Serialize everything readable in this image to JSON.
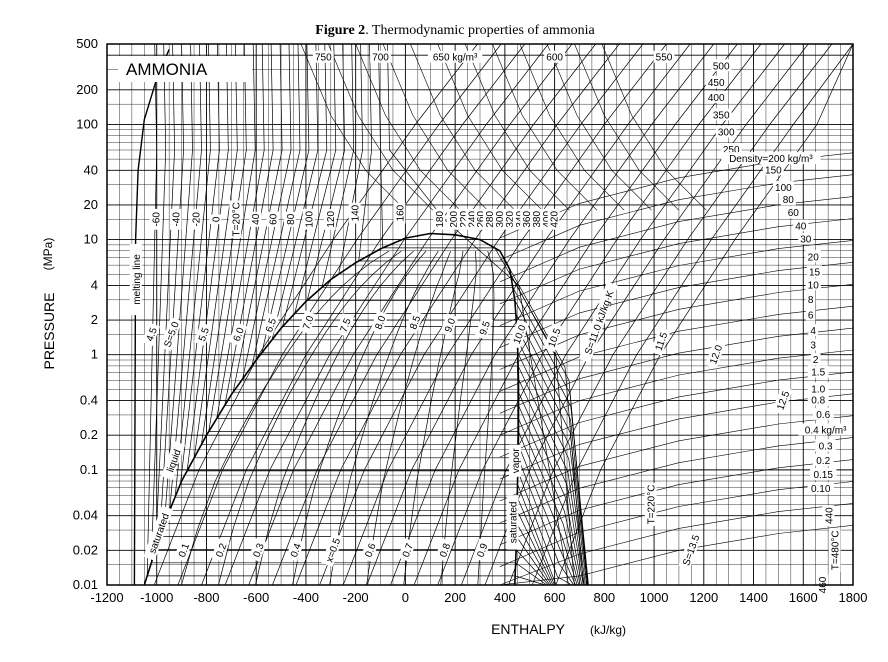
{
  "figure": {
    "title_bold": "Figure 2",
    "title_rest": ". Thermodynamic properties of ammonia",
    "substance_label": "AMMONIA"
  },
  "chart_data": {
    "type": "line",
    "title": "Figure 2. Thermodynamic properties of ammonia",
    "xlabel": "ENTHALPY",
    "xunit": "(kJ/kg)",
    "ylabel": "PRESSURE",
    "yunit": "(MPa)",
    "xlim": [
      -1200,
      1800
    ],
    "ylim": [
      0.01,
      500
    ],
    "yscale": "log",
    "grid": true,
    "x_ticks": [
      "-1200",
      "-1000",
      "-800",
      "-600",
      "-400",
      "-200",
      "0",
      "200",
      "400",
      "600",
      "800",
      "1000",
      "1200",
      "1400",
      "1600",
      "1800"
    ],
    "y_ticks": [
      {
        "value": 0.01,
        "label": "0.01"
      },
      {
        "value": 0.02,
        "label": "0.02"
      },
      {
        "value": 0.04,
        "label": "0.04"
      },
      {
        "value": 0.1,
        "label": "0.1"
      },
      {
        "value": 0.2,
        "label": "0.2"
      },
      {
        "value": 0.4,
        "label": "0.4"
      },
      {
        "value": 1,
        "label": "1"
      },
      {
        "value": 2,
        "label": "2"
      },
      {
        "value": 4,
        "label": "4"
      },
      {
        "value": 10,
        "label": "10"
      },
      {
        "value": 20,
        "label": "20"
      },
      {
        "value": 40,
        "label": "40"
      },
      {
        "value": 100,
        "label": "100"
      },
      {
        "value": 200,
        "label": "200"
      },
      {
        "value": 500,
        "label": "500"
      }
    ],
    "saturation_dome": {
      "liquid_label": "saturated liquid",
      "vapor_label": "saturated vapor",
      "liquid": [
        [
          -1050,
          0.01
        ],
        [
          -980,
          0.03
        ],
        [
          -900,
          0.08
        ],
        [
          -800,
          0.2
        ],
        [
          -700,
          0.45
        ],
        [
          -600,
          0.9
        ],
        [
          -500,
          1.7
        ],
        [
          -400,
          2.9
        ],
        [
          -300,
          4.5
        ],
        [
          -200,
          6.3
        ],
        [
          -100,
          8.3
        ],
        [
          0,
          10.3
        ],
        [
          100,
          11.3
        ]
      ],
      "vapor": [
        [
          100,
          11.3
        ],
        [
          200,
          11.0
        ],
        [
          300,
          10.0
        ],
        [
          380,
          8.0
        ],
        [
          420,
          5.5
        ],
        [
          440,
          3.0
        ],
        [
          450,
          1.5
        ],
        [
          455,
          0.6
        ],
        [
          455,
          0.2
        ],
        [
          450,
          0.06
        ],
        [
          445,
          0.02
        ],
        [
          440,
          0.01
        ]
      ]
    },
    "melting_line": {
      "label": "melting line",
      "points": [
        [
          -1090,
          0.01
        ],
        [
          -1085,
          10
        ],
        [
          -1075,
          40
        ],
        [
          -1050,
          110
        ],
        [
          -1000,
          250
        ],
        [
          -950,
          450
        ]
      ]
    },
    "temperature_labels": [
      "-60",
      "-40",
      "-20",
      "0",
      "T=20°C",
      "40",
      "60",
      "80",
      "100",
      "120",
      "140",
      "160",
      "180",
      "200",
      "220",
      "240",
      "260",
      "280",
      "300",
      "320",
      "340",
      "360",
      "380",
      "400",
      "420",
      "440",
      "460",
      "T=480°C",
      "T=220°C"
    ],
    "entropy_labels": [
      "4.5",
      "S=5.0",
      "5.5",
      "6.0",
      "6.5",
      "7.0",
      "7.5",
      "8.0",
      "8.5",
      "9.0",
      "9.5",
      "10.0",
      "10.5",
      "S=11.0 kJ/kg·K",
      "11.5",
      "12.0",
      "12.5",
      "S=13.5"
    ],
    "quality_labels": [
      "0.1",
      "0.2",
      "0.3",
      "0.4",
      "x=0.5",
      "0.6",
      "0.7",
      "0.8",
      "0.9"
    ],
    "density_labels": [
      "750",
      "700",
      "650 kg/m³",
      "600",
      "550",
      "500",
      "450",
      "400",
      "350",
      "300",
      "250",
      "Density=200 kg/m³",
      "150",
      "100",
      "80",
      "60",
      "40",
      "30",
      "20",
      "15",
      "10",
      "8",
      "6",
      "4",
      "3",
      "2",
      "1.5",
      "1.0",
      "0.8",
      "0.6",
      "0.4 kg/m³",
      "0.3",
      "0.2",
      "0.15",
      "0.10"
    ]
  }
}
